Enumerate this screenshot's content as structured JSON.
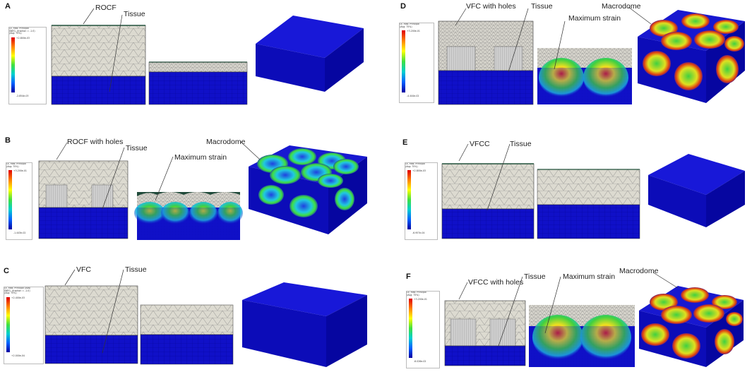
{
  "colors": {
    "tissue_blue": "#1010c8",
    "coating_grey": "#dcdad0",
    "mesh_line": "#6a6a6a",
    "strain_green": "#3ed43e",
    "strain_red": "#e02020"
  },
  "panels": [
    {
      "id": "A",
      "label": "A",
      "callouts": [
        "ROCF",
        "Tissue"
      ],
      "legend": {
        "title": "LE, Max. Principal\nSNEG, (fraction = -1.0)\n(Avg: 75%)",
        "max": "+2.800e-03",
        "min": "-2.854e-03"
      }
    },
    {
      "id": "B",
      "label": "B",
      "callouts": [
        "ROCF with holes",
        "Tissue",
        "Maximum strain",
        "Macrodome"
      ],
      "legend": {
        "title": "LE, Max. Principal\n(Avg: 75%)",
        "max": "+3.200e-01",
        "min": "-1.443e-02"
      }
    },
    {
      "id": "C",
      "label": "C",
      "callouts": [
        "VFC",
        "Tissue"
      ],
      "legend": {
        "title": "LE, Max. Principal (Abs)\nSNEG, (fraction = -1.0)\n(Avg: 75%)",
        "max": "+2.400e-03",
        "min": "+2.000e-04"
      }
    },
    {
      "id": "D",
      "label": "D",
      "callouts": [
        "VFC with holes",
        "Tissue",
        "Maximum strain",
        "Macrodome"
      ],
      "legend": {
        "title": "LE, Max. Principal\n(Avg: 75%)",
        "max": "+3.200e-01",
        "min": "-4.444e-02"
      }
    },
    {
      "id": "E",
      "label": "E",
      "callouts": [
        "VFCC",
        "Tissue"
      ],
      "legend": {
        "title": "LE, Max. Principal\n(Avg: 75%)",
        "max": "+2.800e-03",
        "min": "-6.957e-04"
      }
    },
    {
      "id": "F",
      "label": "F",
      "callouts": [
        "VFCC with holes",
        "Tissue",
        "Maximum strain",
        "Macrodome"
      ],
      "legend": {
        "title": "LE, Max. Principal\n(Avg: 75%)",
        "max": "+3.200e-01",
        "min": "-6.026e-02"
      }
    }
  ]
}
